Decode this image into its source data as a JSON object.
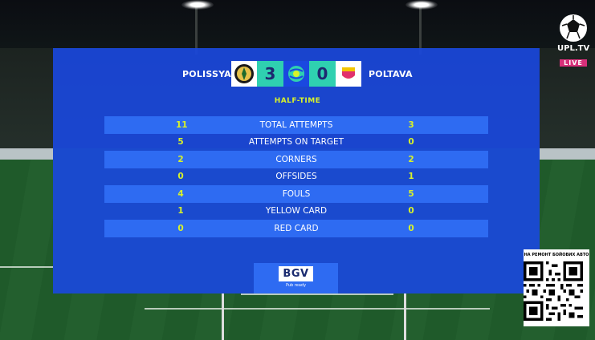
{
  "match": {
    "home_team": "POLISSYA",
    "away_team": "POLTAVA",
    "home_score": "3",
    "away_score": "0",
    "phase": "HALF-TIME"
  },
  "stats": [
    {
      "home": "11",
      "label": "TOTAL ATTEMPTS",
      "away": "3"
    },
    {
      "home": "5",
      "label": "ATTEMPTS ON TARGET",
      "away": "0"
    },
    {
      "home": "2",
      "label": "CORNERS",
      "away": "2"
    },
    {
      "home": "0",
      "label": "OFFSIDES",
      "away": "1"
    },
    {
      "home": "4",
      "label": "FOULS",
      "away": "5"
    },
    {
      "home": "1",
      "label": "YELLOW CARD",
      "away": "0"
    },
    {
      "home": "0",
      "label": "RED CARD",
      "away": "0"
    }
  ],
  "sponsor": {
    "logo": "BGV",
    "tagline": "Pub ready"
  },
  "broadcaster": {
    "name": "UPL.TV",
    "live": "LIVE"
  },
  "qr": {
    "title": "НА РЕМОНТ БОЙОВИХ АВТО"
  },
  "colors": {
    "panel": "#1a48e0",
    "row_alt": "#2e6bf2",
    "accent": "#d8f22a",
    "live": "#d8307a"
  }
}
